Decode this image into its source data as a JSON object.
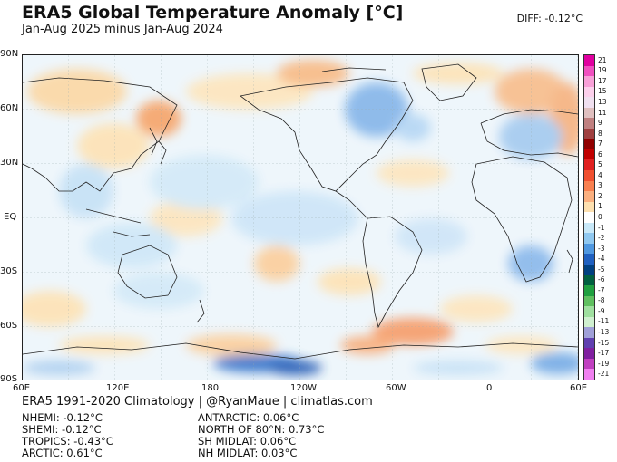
{
  "header": {
    "title": "ERA5 Global Temperature Anomaly [°C]",
    "subtitle": "Jan-Aug 2025 minus Jan-Aug 2024",
    "diff": "DIFF: -0.12°C"
  },
  "axes": {
    "lat_labels": [
      "90N",
      "60N",
      "30N",
      "EQ",
      "30S",
      "60S",
      "90S"
    ],
    "lon_labels": [
      "60E",
      "120E",
      "180",
      "120W",
      "60W",
      "0",
      "60E"
    ]
  },
  "colorbar": {
    "labels": [
      "21",
      "19",
      "17",
      "15",
      "13",
      "11",
      "9",
      "8",
      "7",
      "6",
      "5",
      "4",
      "3",
      "2",
      "1",
      "0",
      "-1",
      "-2",
      "-3",
      "-4",
      "-5",
      "-6",
      "-7",
      "-8",
      "-9",
      "-11",
      "-13",
      "-15",
      "-17",
      "-19",
      "-21"
    ],
    "colors": [
      "#e000a0",
      "#f050c0",
      "#f8a0d8",
      "#fcd0ec",
      "#f0e0f0",
      "#e0c0c0",
      "#c08080",
      "#a04040",
      "#900000",
      "#c00000",
      "#e02020",
      "#f05030",
      "#f88050",
      "#fbb080",
      "#fde0b0",
      "#ffffff",
      "#c8e8f8",
      "#90c8f0",
      "#5098e0",
      "#2060c0",
      "#004080",
      "#006040",
      "#20a040",
      "#60c060",
      "#a0e0a0",
      "#d0f0d0",
      "#a0a0d8",
      "#6040b0",
      "#8020a0",
      "#c040c0",
      "#f080f0"
    ]
  },
  "footer": {
    "climatology": "ERA5 1991-2020 Climatology | @RyanMaue | climatlas.com",
    "stats": {
      "nhemi": "NHEMI: -0.12°C",
      "shemi": "SHEMI: -0.12°C",
      "tropics": "TROPICS: -0.43°C",
      "arctic": "ARCTIC: 0.61°C",
      "antarctic": "ANTARCTIC: 0.06°C",
      "north80": "NORTH OF 80°N: 0.73°C",
      "shmidlat": "SH MIDLAT: 0.06°C",
      "nhmidlat": "NH MIDLAT: 0.03°C"
    }
  }
}
